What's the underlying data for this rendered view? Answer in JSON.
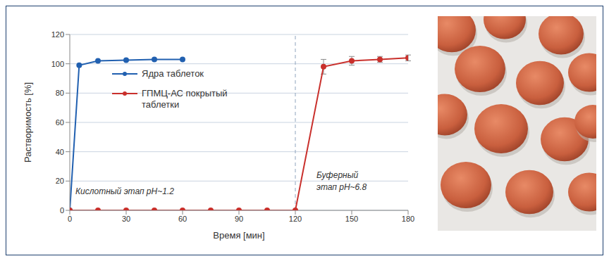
{
  "chart_data": {
    "type": "line",
    "x_label": "Время [мин]",
    "y_label": "Растворимость [%]",
    "xlim": [
      0,
      180
    ],
    "xticks": [
      0,
      30,
      60,
      90,
      120,
      150,
      180
    ],
    "ylim": [
      0,
      120
    ],
    "yticks": [
      0,
      20,
      40,
      60,
      80,
      100,
      120
    ],
    "grid": true,
    "legend": "upper left",
    "marker": "circle",
    "vline_x": 120,
    "annotations": [
      "Кислотный этап pH~1.2",
      "Буферный этап pH~6.8"
    ],
    "series": [
      {
        "name": "Ядра таблеток",
        "color": "#2160b0",
        "x": [
          0,
          5,
          15,
          30,
          45,
          60
        ],
        "values": [
          0,
          99,
          102,
          102.5,
          103,
          103
        ]
      },
      {
        "name": "ГПМЦ-АС покрытый таблетки",
        "color": "#c9302c",
        "x": [
          0,
          15,
          30,
          45,
          60,
          75,
          90,
          105,
          120,
          135,
          150,
          165,
          180
        ],
        "values": [
          0,
          0,
          0,
          0,
          0,
          0,
          0,
          0,
          0,
          98,
          102,
          103,
          104
        ],
        "errors": [
          0,
          0,
          0,
          0,
          0,
          0,
          0,
          0,
          0,
          5,
          3,
          2,
          2
        ]
      }
    ]
  }
}
